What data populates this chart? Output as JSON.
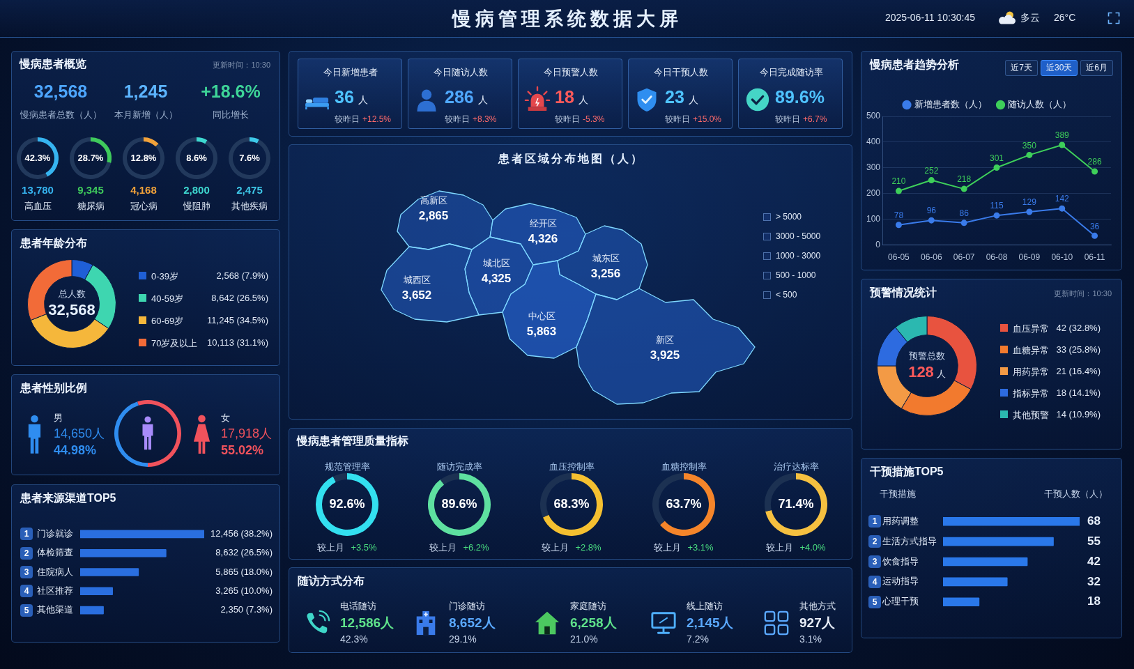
{
  "chart_data": [
    {
      "type": "other",
      "title": "慢病管理系统数据大屏",
      "annotations": [
        "2025-06-11 10:30:45",
        "多云",
        "26°C"
      ]
    },
    {
      "type": "other",
      "title": "慢病患者概览",
      "categories": [
        "慢病患者总数（人）",
        "本月新增（人）",
        "同比增长"
      ],
      "values": [
        32568,
        1245,
        18.6
      ],
      "value_labels": [
        "32,568",
        "1,245",
        "+18.6%"
      ],
      "annotations": [
        "更新时间：10:30"
      ]
    },
    {
      "type": "donut",
      "title": "高血压",
      "categories": [
        null,
        null
      ],
      "values": [
        42.3,
        57.7
      ],
      "colors": [
        "#36b4f0",
        "#22395c"
      ],
      "value_labels": [
        "42.3%",
        null
      ],
      "annotations": [
        "13,780"
      ]
    },
    {
      "type": "donut",
      "title": "糖尿病",
      "categories": [
        null,
        null
      ],
      "values": [
        28.7,
        71.3
      ],
      "colors": [
        "#3fca5c",
        "#22395c"
      ],
      "value_labels": [
        "28.7%",
        null
      ],
      "annotations": [
        "9,345"
      ]
    },
    {
      "type": "donut",
      "title": "冠心病",
      "categories": [
        null,
        null
      ],
      "values": [
        12.8,
        87.2
      ],
      "colors": [
        "#f2a23a",
        "#22395c"
      ],
      "value_labels": [
        "12.8%",
        null
      ],
      "annotations": [
        "4,168"
      ]
    },
    {
      "type": "donut",
      "title": "慢阻肺",
      "categories": [
        null,
        null
      ],
      "values": [
        8.6,
        91.4
      ],
      "colors": [
        "#3ed8d0",
        "#22395c"
      ],
      "value_labels": [
        "8.6%",
        null
      ],
      "annotations": [
        "2,800"
      ]
    },
    {
      "type": "donut",
      "title": "其他疾病",
      "categories": [
        null,
        null
      ],
      "values": [
        7.6,
        92.4
      ],
      "colors": [
        "#3ec8e8",
        "#22395c"
      ],
      "value_labels": [
        "7.6%",
        null
      ],
      "annotations": [
        "2,475"
      ]
    },
    {
      "type": "donut",
      "title": "患者年龄分布",
      "categories": [
        "0-39岁",
        "40-59岁",
        "60-69岁",
        "70岁及以上"
      ],
      "values": [
        2568,
        8642,
        11245,
        10113
      ],
      "colors": [
        "#1f5fd6",
        "#3ed6b0",
        "#f5b73b",
        "#f26b38"
      ],
      "value_labels": [
        "2,568 (7.9%)",
        "8,642 (26.5%)",
        "11,245 (34.5%)",
        "10,113 (31.1%)"
      ],
      "annotations": [
        "总人数",
        "32,568"
      ],
      "legend": "right"
    },
    {
      "type": "donut",
      "title": "患者性别比例",
      "categories": [
        "男",
        "女"
      ],
      "values": [
        14650,
        17918
      ],
      "colors": [
        "#2f8df0",
        "#f0525c"
      ],
      "value_labels": [
        "14,650人",
        "17,918人"
      ],
      "annotations": [
        "44.98%",
        "55.02%"
      ],
      "legend": "top"
    },
    {
      "type": "bar",
      "orientation": "horizontal",
      "title": "患者来源渠道TOP5",
      "categories": [
        "门诊就诊",
        "体检筛查",
        "住院病人",
        "社区推荐",
        "其他渠道"
      ],
      "values": [
        12456,
        8632,
        5865,
        3265,
        2350
      ],
      "color": "#2a6fe0",
      "value_labels": [
        "12,456 (38.2%)",
        "8,632 (26.5%)",
        "5,865 (18.0%)",
        "3,265 (10.0%)",
        "2,350 (7.3%)"
      ],
      "annotations": [
        "1",
        "2",
        "3",
        "4",
        "5"
      ]
    },
    {
      "type": "other",
      "categories": [
        "今日新增患者",
        "今日随访人数",
        "今日预警人数",
        "今日干预人数",
        "今日完成随访率"
      ],
      "values": [
        36,
        286,
        18,
        23,
        89.6
      ],
      "value_labels": [
        "36 人",
        "286 人",
        "18 人",
        "23 人",
        "89.6%"
      ],
      "annotations": [
        "较昨日 +12.5%",
        "较昨日 +8.3%",
        "较昨日 -5.3%",
        "较昨日 +15.0%",
        "较昨日 +6.7%"
      ]
    },
    {
      "type": "other",
      "title": "患者区域分布地图（人）",
      "categories": [
        "高新区",
        "经开区",
        "城北区",
        "城东区",
        "城西区",
        "中心区",
        "新区"
      ],
      "values": [
        2865,
        4326,
        4325,
        3256,
        3652,
        5863,
        3925
      ],
      "value_labels": [
        "2,865",
        "4,326",
        "4,325",
        "3,256",
        "3,652",
        "5,863",
        "3,925"
      ],
      "annotations": [
        "> 5000",
        "3000 - 5000",
        "1000 - 3000",
        "500 - 1000",
        "< 500"
      ]
    },
    {
      "type": "other",
      "title": "慢病患者管理质量指标"
    },
    {
      "type": "donut",
      "title": "规范管理率",
      "categories": [
        null,
        null
      ],
      "values": [
        92.6,
        7.4
      ],
      "colors": [
        "#33e0f0",
        "#1c3152"
      ],
      "value_labels": [
        "92.6%",
        null
      ],
      "annotations": [
        "较上月 +3.5%"
      ]
    },
    {
      "type": "donut",
      "title": "随访完成率",
      "categories": [
        null,
        null
      ],
      "values": [
        89.6,
        10.4
      ],
      "colors": [
        "#5ee0a0",
        "#1c3152"
      ],
      "value_labels": [
        "89.6%",
        null
      ],
      "annotations": [
        "较上月 +6.2%"
      ]
    },
    {
      "type": "donut",
      "title": "血压控制率",
      "categories": [
        null,
        null
      ],
      "values": [
        68.3,
        31.7
      ],
      "colors": [
        "#f5c030",
        "#1c3152"
      ],
      "value_labels": [
        "68.3%",
        null
      ],
      "annotations": [
        "较上月 +2.8%"
      ]
    },
    {
      "type": "donut",
      "title": "血糖控制率",
      "categories": [
        null,
        null
      ],
      "values": [
        63.7,
        36.3
      ],
      "colors": [
        "#f5852a",
        "#1c3152"
      ],
      "value_labels": [
        "63.7%",
        null
      ],
      "annotations": [
        "较上月 +3.1%"
      ]
    },
    {
      "type": "donut",
      "title": "治疗达标率",
      "categories": [
        null,
        null
      ],
      "values": [
        71.4,
        28.6
      ],
      "colors": [
        "#f5c040",
        "#1c3152"
      ],
      "value_labels": [
        "71.4%",
        null
      ],
      "annotations": [
        "较上月 +4.0%"
      ]
    },
    {
      "type": "other",
      "title": "随访方式分布",
      "categories": [
        "电话随访",
        "门诊随访",
        "家庭随访",
        "线上随访",
        "其他方式"
      ],
      "values": [
        12586,
        8652,
        6258,
        2145,
        927
      ],
      "value_labels": [
        "12,586人",
        "8,652人",
        "6,258人",
        "2,145人",
        "927人"
      ],
      "annotations": [
        "42.3%",
        "29.1%",
        "21.0%",
        "7.2%",
        "3.1%"
      ]
    },
    {
      "type": "line",
      "title": "慢病患者趋势分析",
      "categories": [
        "06-05",
        "06-06",
        "06-07",
        "06-08",
        "06-09",
        "06-10",
        "06-11"
      ],
      "series": [
        {
          "name": "新增患者数（人）",
          "color": "#3a7bea",
          "values": [
            78,
            96,
            86,
            115,
            129,
            142,
            36
          ]
        },
        {
          "name": "随访人数（人）",
          "color": "#3ecf5a",
          "values": [
            210,
            252,
            218,
            301,
            350,
            389,
            286
          ]
        }
      ],
      "ylim": [
        0,
        500
      ],
      "yticks": [
        0,
        100,
        200,
        300,
        400,
        500
      ],
      "grid": "y",
      "legend": "top",
      "marker": "circle",
      "data_labels": true,
      "annotations": [
        "近7天",
        "近30天",
        "近6月"
      ]
    },
    {
      "type": "donut",
      "title": "预警情况统计",
      "categories": [
        "血压异常",
        "血糖异常",
        "用药异常",
        "指标异常",
        "其他预警"
      ],
      "values": [
        42,
        33,
        21,
        18,
        14
      ],
      "colors": [
        "#e8533f",
        "#f27a2e",
        "#f39a45",
        "#2d6be0",
        "#2bb8b0"
      ],
      "value_labels": [
        "42 (32.8%)",
        "33 (25.8%)",
        "21 (16.4%)",
        "18 (14.1%)",
        "14 (10.9%)"
      ],
      "annotations": [
        "更新时间：10:30",
        "预警总数",
        "128 人"
      ],
      "legend": "right"
    },
    {
      "type": "bar",
      "orientation": "horizontal",
      "title": "干预措施TOP5",
      "ylabel": "干预措施",
      "xlabel": "干预人数（人）",
      "categories": [
        "用药调整",
        "生活方式指导",
        "饮食指导",
        "运动指导",
        "心理干预"
      ],
      "values": [
        68,
        55,
        42,
        32,
        18
      ],
      "color": "#2a78ea",
      "data_labels": true,
      "annotations": [
        "1",
        "2",
        "3",
        "4",
        "5"
      ]
    }
  ]
}
